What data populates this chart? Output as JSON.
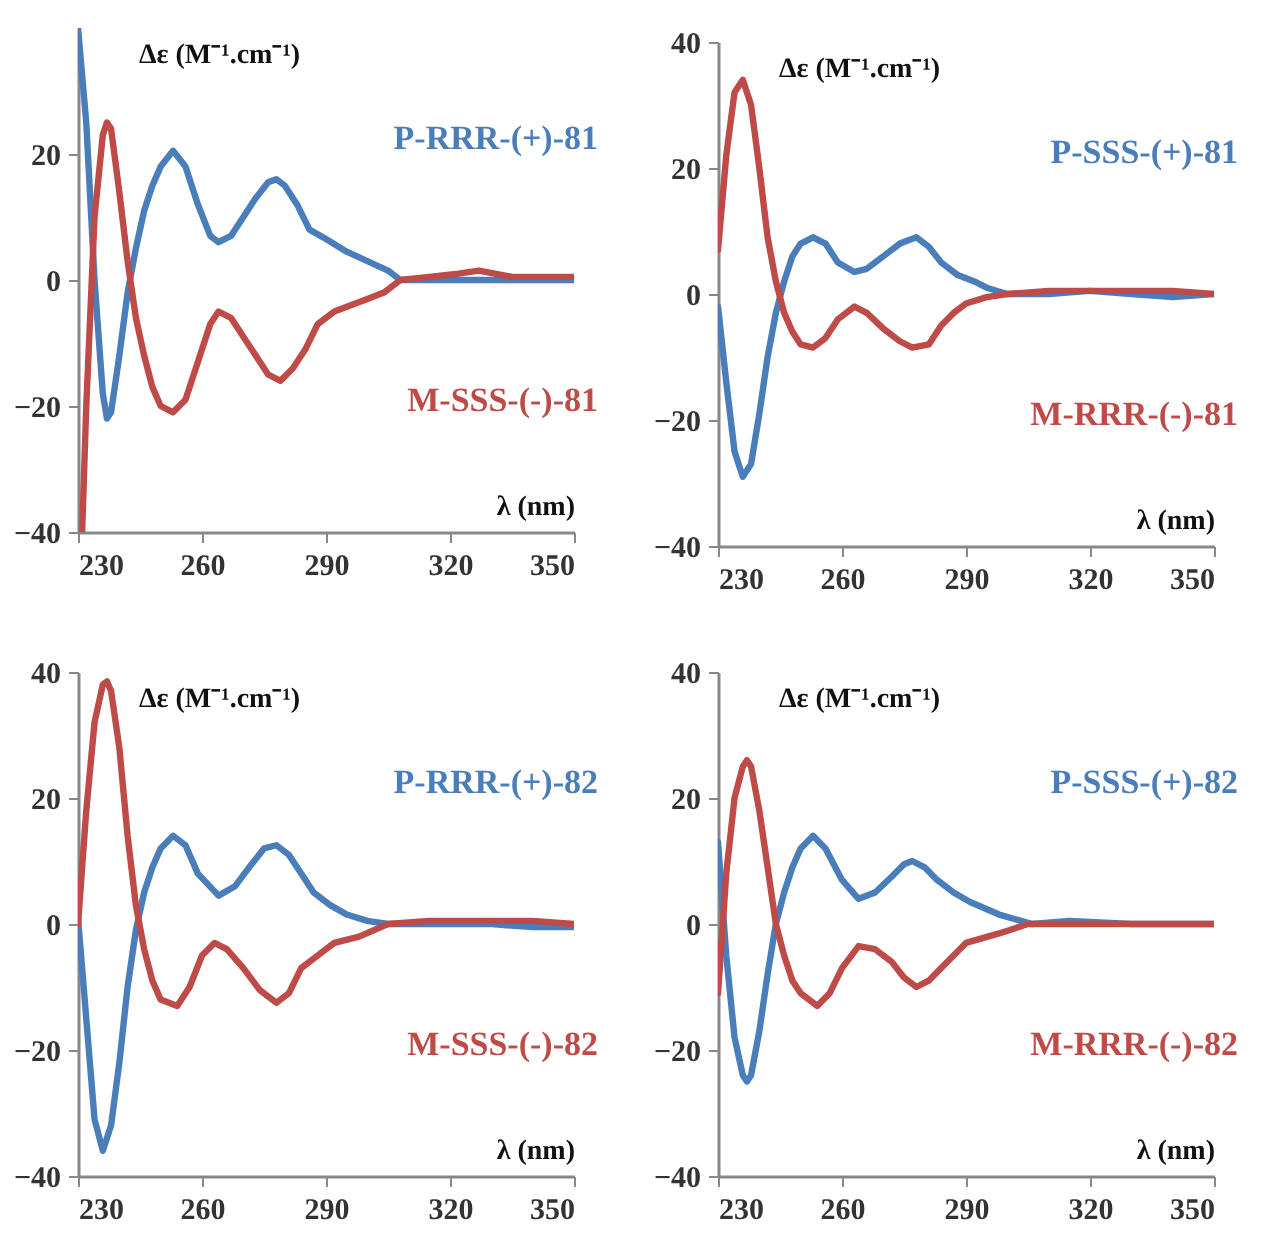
{
  "chart_data": [
    {
      "type": "line",
      "xlabel": "λ (nm)",
      "ylabel": "Δε (M⁻¹.cm⁻¹)",
      "xlim": [
        230,
        350
      ],
      "ylim": [
        -40,
        40
      ],
      "xticks": [
        230,
        260,
        290,
        320,
        350
      ],
      "yticks": [
        -40,
        -20,
        0,
        20
      ],
      "series": [
        {
          "name": "P-RRR-(+)-81",
          "color": "#4a7ebb",
          "x": [
            230,
            232,
            234,
            236,
            237,
            238,
            240,
            242,
            244,
            246,
            248,
            250,
            253,
            256,
            259,
            262,
            264,
            267,
            270,
            273,
            276,
            278,
            280,
            283,
            286,
            290,
            295,
            300,
            305,
            308,
            315,
            325,
            335,
            350
          ],
          "values": [
            40,
            25,
            0,
            -18,
            -22,
            -21,
            -12,
            -2,
            5,
            11,
            15,
            18,
            20.5,
            18,
            12,
            7,
            6,
            7,
            10,
            13,
            15.5,
            16,
            15,
            12,
            8,
            6.5,
            4.5,
            3,
            1.5,
            0,
            0,
            0,
            0,
            0
          ]
        },
        {
          "name": "M-SSS-(-)-81",
          "color": "#be4b48",
          "x": [
            231,
            232,
            234,
            236,
            237,
            238,
            240,
            242,
            244,
            246,
            248,
            250,
            253,
            256,
            259,
            262,
            264,
            267,
            270,
            273,
            276,
            279,
            282,
            285,
            288,
            292,
            296,
            300,
            304,
            308,
            315,
            322,
            327,
            335,
            350
          ],
          "values": [
            -40,
            -20,
            10,
            23,
            25,
            24,
            14,
            3,
            -6,
            -12,
            -17,
            -20,
            -21,
            -19,
            -13,
            -7,
            -5,
            -6,
            -9,
            -12,
            -15,
            -16,
            -14,
            -11,
            -7,
            -5,
            -4,
            -3,
            -2,
            0,
            0.5,
            1,
            1.5,
            0.5,
            0.5
          ]
        }
      ]
    },
    {
      "type": "line",
      "xlabel": "λ (nm)",
      "ylabel": "Δε (M⁻¹.cm⁻¹)",
      "xlim": [
        230,
        350
      ],
      "ylim": [
        -40,
        40
      ],
      "xticks": [
        230,
        260,
        290,
        320,
        350
      ],
      "yticks": [
        -40,
        -20,
        0,
        20,
        40
      ],
      "series": [
        {
          "name": "P-SSS-(+)-81",
          "color": "#4a7ebb",
          "x": [
            230,
            232,
            234,
            236,
            238,
            240,
            242,
            244,
            246,
            248,
            250,
            253,
            256,
            259,
            263,
            266,
            270,
            274,
            278,
            281,
            284,
            288,
            292,
            295,
            300,
            310,
            320,
            330,
            340,
            350
          ],
          "values": [
            -2,
            -14,
            -25,
            -29,
            -27,
            -19,
            -10,
            -3,
            2,
            6,
            8,
            9,
            8,
            5,
            3.5,
            4,
            6,
            8,
            9,
            7.5,
            5,
            3,
            2,
            1,
            0,
            0,
            0.5,
            0,
            -0.5,
            0
          ]
        },
        {
          "name": "M-RRR-(-)-81",
          "color": "#be4b48",
          "x": [
            230,
            232,
            234,
            236,
            238,
            240,
            242,
            244,
            246,
            248,
            250,
            253,
            256,
            259,
            263,
            266,
            270,
            274,
            277,
            281,
            284,
            287,
            290,
            295,
            300,
            310,
            320,
            330,
            340,
            350
          ],
          "values": [
            7,
            22,
            32,
            34,
            30,
            20,
            9,
            2,
            -3,
            -6,
            -8,
            -8.5,
            -7,
            -4,
            -2,
            -3,
            -5.5,
            -7.5,
            -8.5,
            -8,
            -5,
            -3,
            -1.5,
            -0.5,
            0,
            0.5,
            0.5,
            0.5,
            0.5,
            0
          ]
        }
      ]
    },
    {
      "type": "line",
      "xlabel": "λ (nm)",
      "ylabel": "Δε (M⁻¹.cm⁻¹)",
      "xlim": [
        230,
        350
      ],
      "ylim": [
        -40,
        40
      ],
      "xticks": [
        230,
        260,
        290,
        320,
        350
      ],
      "yticks": [
        -40,
        -20,
        0,
        20,
        40
      ],
      "series": [
        {
          "name": "P-RRR-(+)-82",
          "color": "#4a7ebb",
          "x": [
            230,
            232,
            234,
            236,
            238,
            240,
            242,
            244,
            246,
            248,
            250,
            253,
            256,
            259,
            264,
            268,
            272,
            275,
            278,
            281,
            284,
            287,
            291,
            295,
            300,
            305,
            315,
            330,
            340,
            350
          ],
          "values": [
            1,
            -15,
            -31,
            -36,
            -32,
            -22,
            -10,
            -1,
            5,
            9,
            12,
            14,
            12.5,
            8,
            4.5,
            6,
            9.5,
            12,
            12.5,
            11,
            8,
            5,
            3,
            1.5,
            0.5,
            0,
            0,
            0,
            -0.5,
            -0.5
          ]
        },
        {
          "name": "M-SSS-(-)-82",
          "color": "#be4b48",
          "x": [
            230,
            232,
            234,
            236,
            237,
            238,
            240,
            242,
            244,
            246,
            248,
            250,
            254,
            257,
            260,
            263,
            266,
            270,
            274,
            278,
            281,
            284,
            288,
            292,
            298,
            305,
            315,
            330,
            340,
            350
          ],
          "values": [
            0,
            18,
            32,
            38,
            38.5,
            37,
            28,
            14,
            3,
            -4,
            -9,
            -12,
            -13,
            -10,
            -5,
            -3,
            -4,
            -7,
            -10.5,
            -12.5,
            -11,
            -7,
            -5,
            -3,
            -2,
            0,
            0.5,
            0.5,
            0.5,
            0
          ]
        }
      ]
    },
    {
      "type": "line",
      "xlabel": "λ (nm)",
      "ylabel": "Δε (M⁻¹.cm⁻¹)",
      "xlim": [
        230,
        350
      ],
      "ylim": [
        -40,
        40
      ],
      "xticks": [
        230,
        260,
        290,
        320,
        350
      ],
      "yticks": [
        -40,
        -20,
        0,
        20,
        40
      ],
      "series": [
        {
          "name": "P-SSS-(+)-82",
          "color": "#4a7ebb",
          "x": [
            230,
            232,
            234,
            236,
            237,
            238,
            240,
            242,
            244,
            246,
            248,
            250,
            253,
            256,
            260,
            264,
            268,
            272,
            275,
            277,
            280,
            283,
            287,
            291,
            298,
            306,
            315,
            330,
            350
          ],
          "values": [
            13,
            -5,
            -18,
            -24,
            -25,
            -24,
            -17,
            -8,
            0,
            5,
            9,
            12,
            14,
            12,
            7,
            4,
            5,
            7.5,
            9.5,
            10,
            9,
            7,
            5,
            3.5,
            1.5,
            0,
            0.5,
            0,
            0
          ]
        },
        {
          "name": "M-RRR-(-)-82",
          "color": "#be4b48",
          "x": [
            230,
            232,
            234,
            236,
            237,
            238,
            240,
            242,
            244,
            246,
            248,
            250,
            254,
            257,
            260,
            264,
            268,
            272,
            275,
            278,
            281,
            284,
            287,
            290,
            298,
            305,
            315,
            330,
            350
          ],
          "values": [
            -11,
            8,
            20,
            25,
            26,
            25,
            18,
            9,
            0,
            -5,
            -9,
            -11,
            -13,
            -11,
            -7,
            -3.5,
            -4,
            -6,
            -8.5,
            -10,
            -9,
            -7,
            -5,
            -3,
            -1.5,
            0,
            0,
            0,
            0
          ]
        }
      ]
    }
  ]
}
